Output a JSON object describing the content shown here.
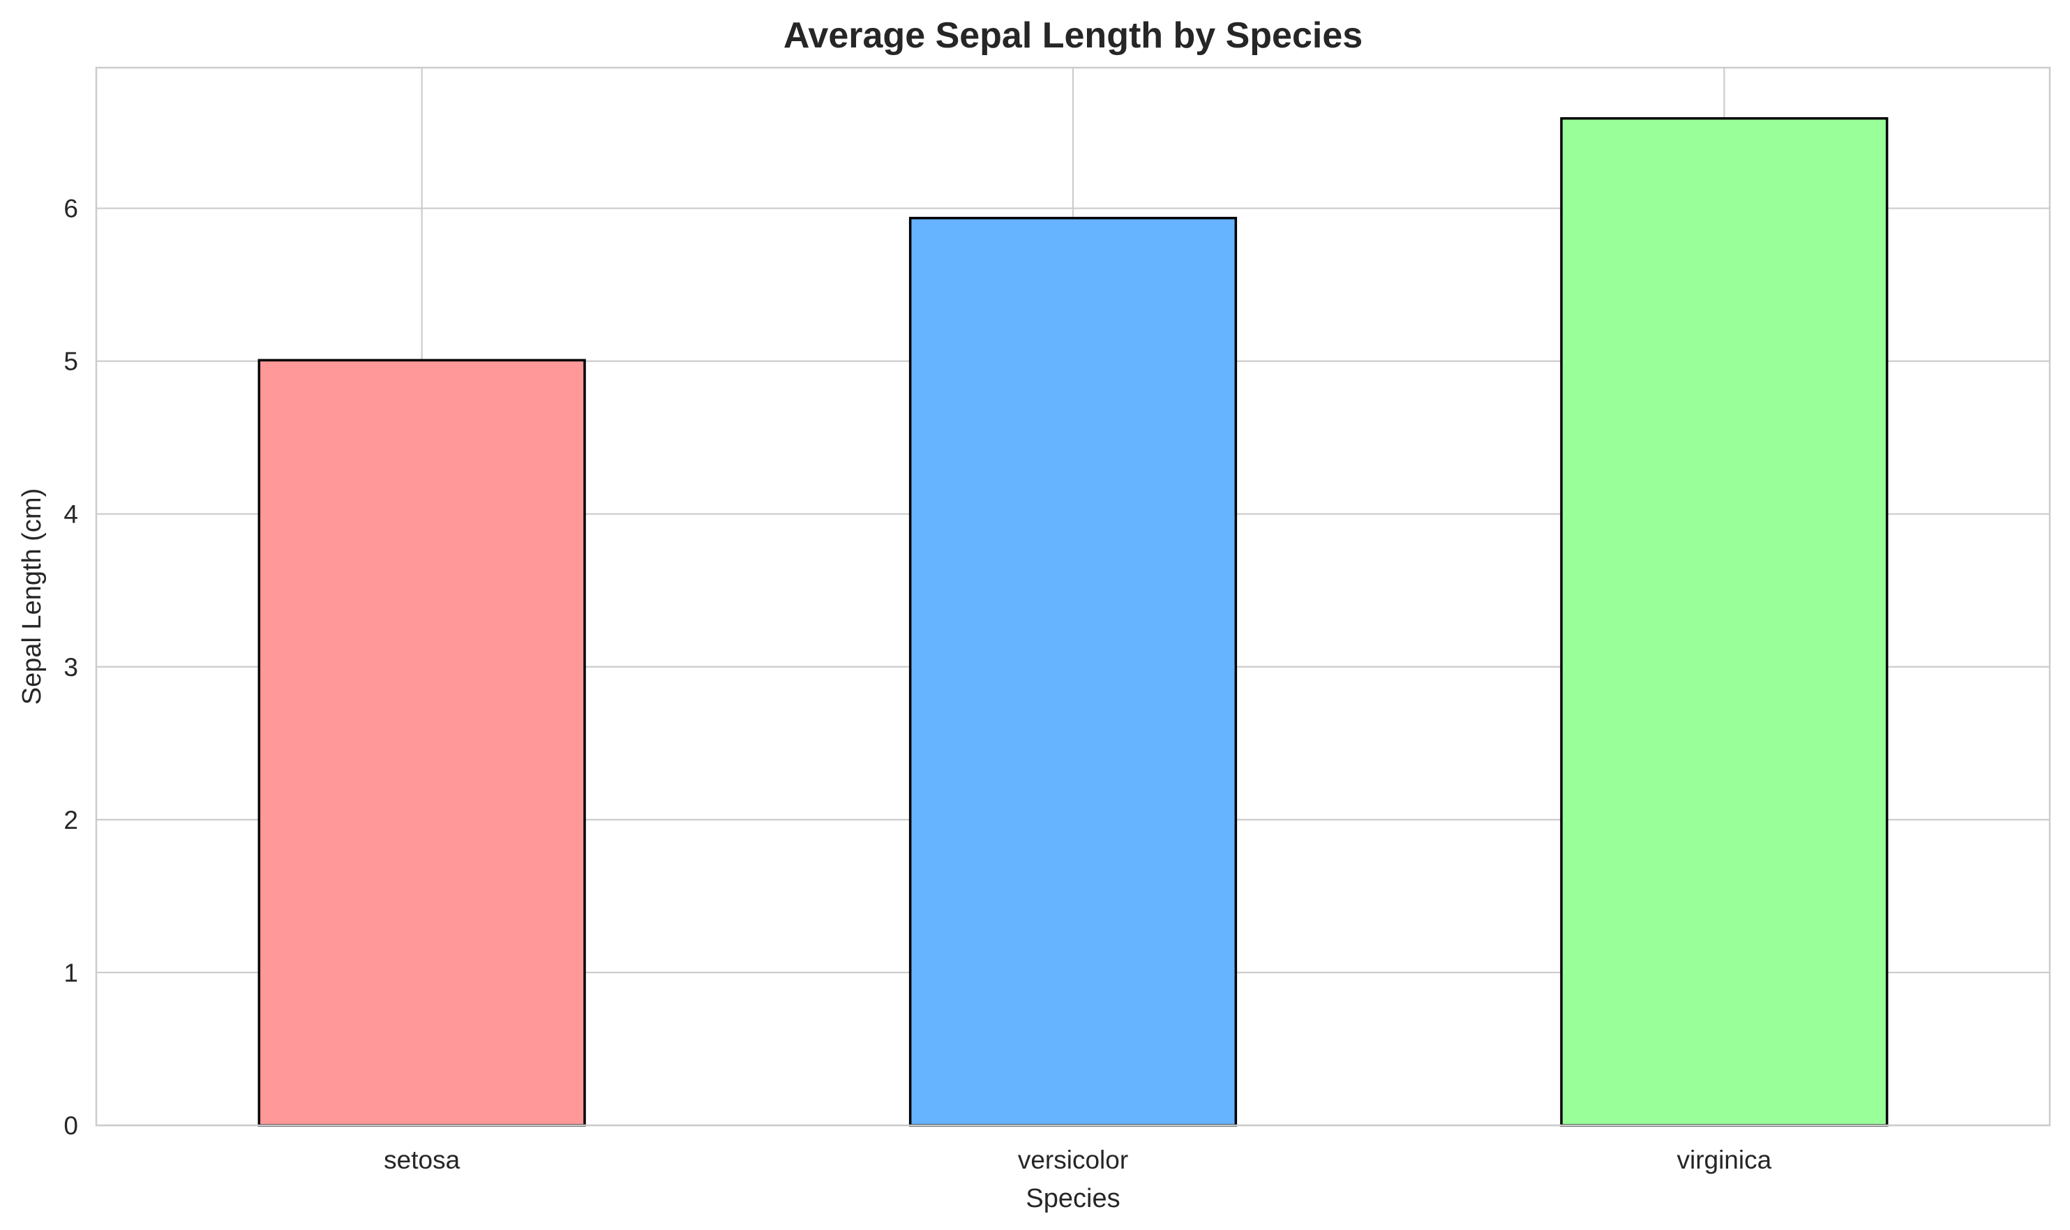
{
  "chart_data": {
    "type": "bar",
    "title": "Average Sepal Length by Species",
    "xlabel": "Species",
    "ylabel": "Sepal Length (cm)",
    "categories": [
      "setosa",
      "versicolor",
      "virginica"
    ],
    "values": [
      5.006,
      5.936,
      6.588
    ],
    "colors": [
      "#ff9999",
      "#66b3ff",
      "#99ff99"
    ],
    "edge_color": "#000000",
    "ylim": [
      0,
      6.92
    ],
    "yticks": [
      0,
      1,
      2,
      3,
      4,
      5,
      6
    ],
    "ytick_labels": [
      "0",
      "1",
      "2",
      "3",
      "4",
      "5",
      "6"
    ],
    "grid": true,
    "grid_color": "#cccccc",
    "frame_color": "#cccccc",
    "legend": false
  }
}
